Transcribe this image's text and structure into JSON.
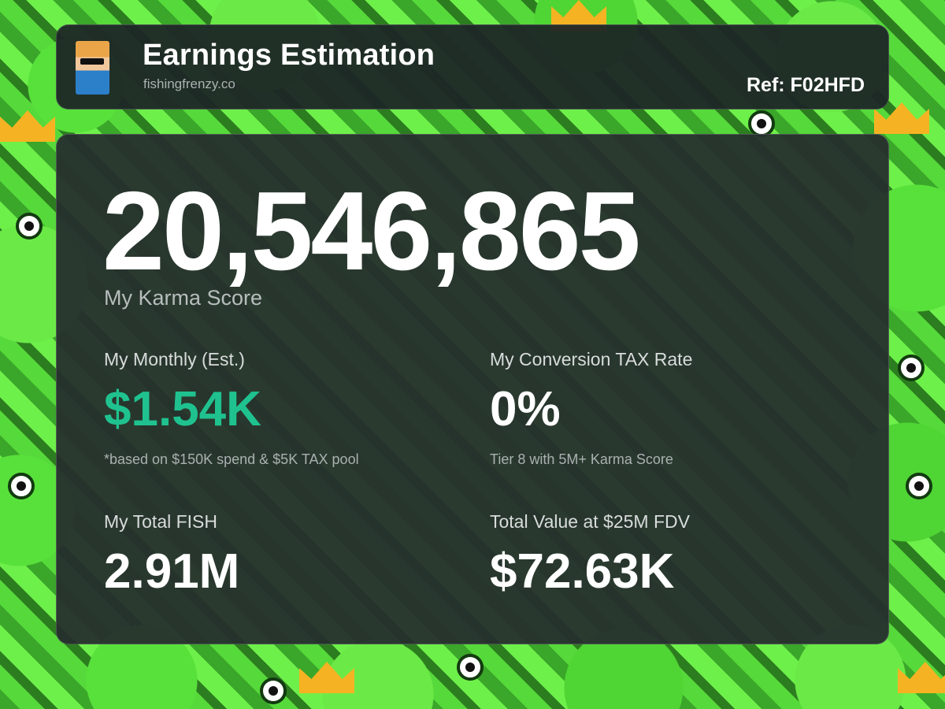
{
  "header": {
    "title": "Earnings Estimation",
    "site": "fishingfrenzy.co",
    "ref": "Ref: F02HFD",
    "avatar_icon": "fisher-avatar-icon"
  },
  "karma": {
    "value": "20,546,865",
    "label": "My Karma Score"
  },
  "stats": {
    "monthly": {
      "label": "My Monthly (Est.)",
      "value": "$1.54K",
      "note": "*based on $150K spend & $5K TAX pool"
    },
    "tax": {
      "label": "My Conversion TAX Rate",
      "value": "0%",
      "note": "Tier 8 with 5M+ Karma Score"
    },
    "fish": {
      "label": "My Total FISH",
      "value": "2.91M"
    },
    "total_value": {
      "label": "Total Value at $25M FDV",
      "value": "$72.63K"
    }
  },
  "colors": {
    "accent_green": "#1fc28f",
    "background_green": "#56d93a",
    "card": "#262e2e"
  }
}
